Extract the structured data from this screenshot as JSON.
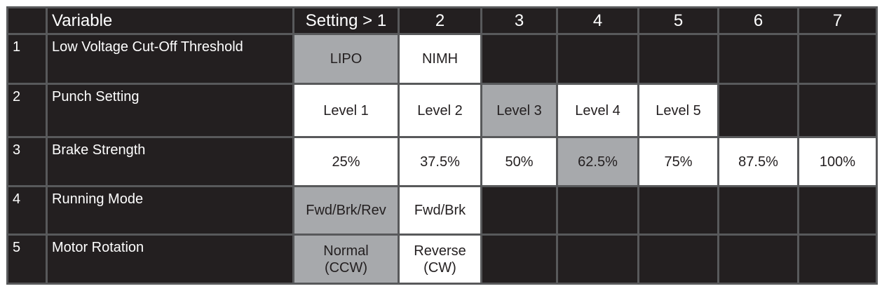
{
  "header": [
    "",
    "Variable",
    "Setting > 1",
    "2",
    "3",
    "4",
    "5",
    "6",
    "7"
  ],
  "colors": {
    "dark": "#231f20",
    "selected_default": "#a7a9ac",
    "option": "#ffffff",
    "border": "#58595b"
  },
  "rows": [
    {
      "num": "1",
      "variable": "Low Voltage Cut-Off Threshold",
      "default_index": 0,
      "options": [
        "LIPO",
        "NIMH",
        null,
        null,
        null,
        null,
        null
      ]
    },
    {
      "num": "2",
      "variable": "Punch Setting",
      "default_index": 2,
      "options": [
        "Level 1",
        "Level 2",
        "Level 3",
        "Level 4",
        "Level 5",
        null,
        null
      ]
    },
    {
      "num": "3",
      "variable": "Brake Strength",
      "default_index": 3,
      "options": [
        "25%",
        "37.5%",
        "50%",
        "62.5%",
        "75%",
        "87.5%",
        "100%"
      ]
    },
    {
      "num": "4",
      "variable": "Running Mode",
      "default_index": 0,
      "options": [
        "Fwd/Brk/Rev",
        "Fwd/Brk",
        null,
        null,
        null,
        null,
        null
      ]
    },
    {
      "num": "5",
      "variable": "Motor Rotation",
      "default_index": 0,
      "options": [
        "Normal\n(CCW)",
        "Reverse\n(CW)",
        null,
        null,
        null,
        null,
        null
      ]
    }
  ]
}
